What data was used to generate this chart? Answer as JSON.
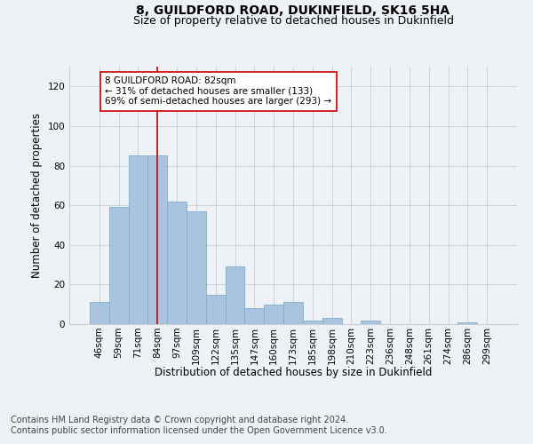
{
  "title1": "8, GUILDFORD ROAD, DUKINFIELD, SK16 5HA",
  "title2": "Size of property relative to detached houses in Dukinfield",
  "xlabel": "Distribution of detached houses by size in Dukinfield",
  "ylabel": "Number of detached properties",
  "bar_labels": [
    "46sqm",
    "59sqm",
    "71sqm",
    "84sqm",
    "97sqm",
    "109sqm",
    "122sqm",
    "135sqm",
    "147sqm",
    "160sqm",
    "173sqm",
    "185sqm",
    "198sqm",
    "210sqm",
    "223sqm",
    "236sqm",
    "248sqm",
    "261sqm",
    "274sqm",
    "286sqm",
    "299sqm"
  ],
  "bar_values": [
    11,
    59,
    85,
    85,
    62,
    57,
    15,
    29,
    8,
    10,
    11,
    2,
    3,
    0,
    2,
    0,
    0,
    0,
    0,
    1,
    0
  ],
  "bar_color": "#aac4df",
  "bar_edge_color": "#7aafd4",
  "ylim": [
    0,
    130
  ],
  "yticks": [
    0,
    20,
    40,
    60,
    80,
    100,
    120
  ],
  "vline_x_index": 3,
  "vline_color": "#cc0000",
  "annotation_text": "8 GUILDFORD ROAD: 82sqm\n← 31% of detached houses are smaller (133)\n69% of semi-detached houses are larger (293) →",
  "footer1": "Contains HM Land Registry data © Crown copyright and database right 2024.",
  "footer2": "Contains public sector information licensed under the Open Government Licence v3.0.",
  "background_color": "#eef2f7",
  "grid_color": "#cccccc",
  "title_fontsize": 10,
  "subtitle_fontsize": 9,
  "axis_label_fontsize": 8.5,
  "tick_fontsize": 7.5,
  "annotation_fontsize": 7.5,
  "footer_fontsize": 7
}
